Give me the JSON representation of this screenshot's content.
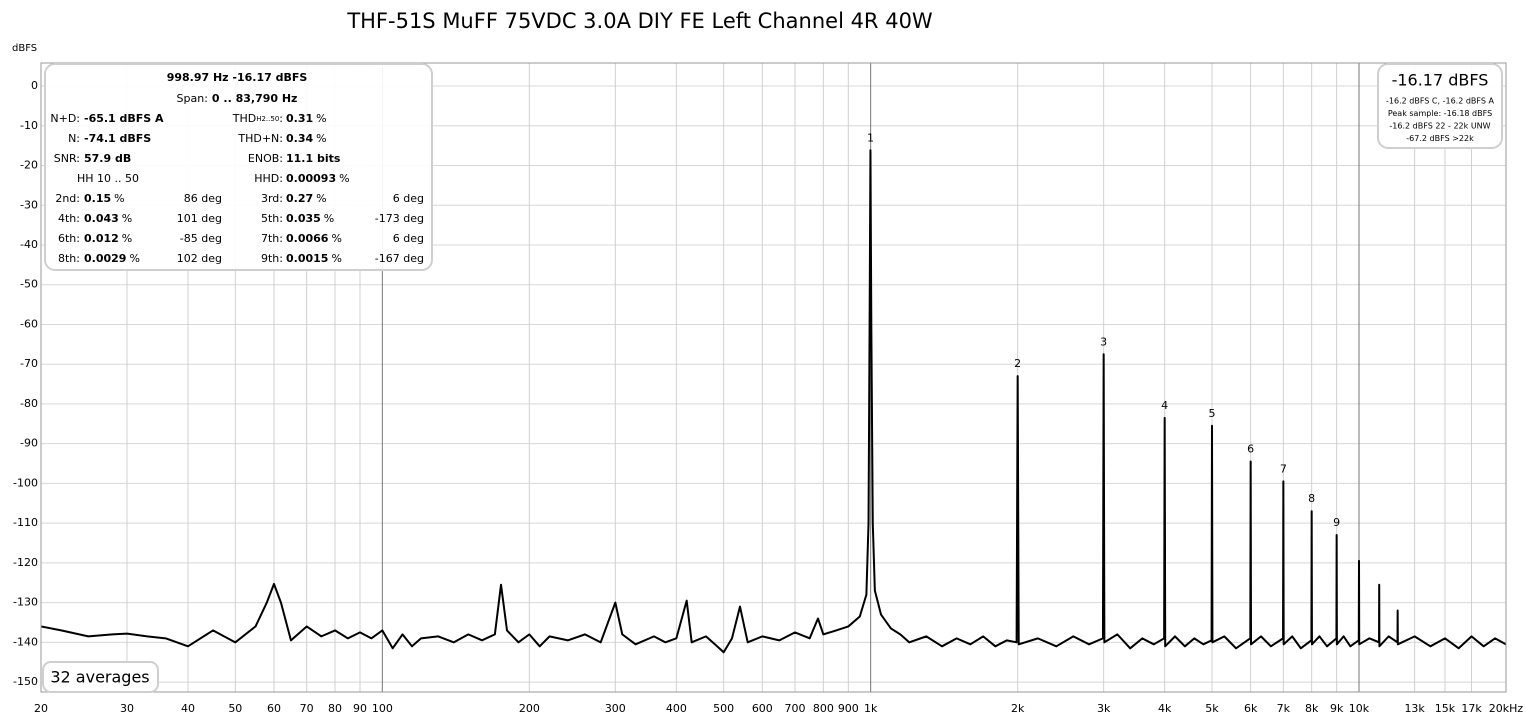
{
  "chart_data": {
    "type": "line",
    "title": "THF-51S MuFF 75VDC 3.0A DIY FE Left Channel 4R 40W",
    "y_label": "dBFS",
    "log_x": true,
    "grid": true,
    "color": "#000000",
    "xlim": [
      20,
      20000
    ],
    "ylim": [
      -152.5,
      5.8
    ],
    "yticks": [
      0,
      -10,
      -20,
      -30,
      -40,
      -50,
      -60,
      -70,
      -80,
      -90,
      -100,
      -110,
      -120,
      -130,
      -140,
      -150
    ],
    "xticks": [
      20,
      30,
      40,
      50,
      60,
      70,
      80,
      90,
      100,
      200,
      300,
      400,
      500,
      600,
      700,
      800,
      900,
      {
        "value": 1000,
        "label": "1k"
      },
      {
        "value": 2000,
        "label": "2k"
      },
      {
        "value": 3000,
        "label": "3k"
      },
      {
        "value": 4000,
        "label": "4k"
      },
      {
        "value": 5000,
        "label": "5k"
      },
      {
        "value": 6000,
        "label": "6k"
      },
      {
        "value": 7000,
        "label": "7k"
      },
      {
        "value": 8000,
        "label": "8k"
      },
      {
        "value": 9000,
        "label": "9k"
      },
      {
        "value": 10000,
        "label": "10k"
      },
      {
        "value": 13000,
        "label": "13k"
      },
      {
        "value": 15000,
        "label": "15k"
      },
      {
        "value": 17000,
        "label": "17k"
      },
      {
        "value": 20000,
        "label": "20kHz"
      }
    ],
    "x": [
      20,
      22,
      25,
      28,
      30,
      33,
      36,
      40,
      45,
      50,
      55,
      58,
      60,
      62,
      65,
      70,
      75,
      80,
      85,
      90,
      95,
      100,
      105,
      110,
      115,
      120,
      130,
      140,
      150,
      160,
      170,
      175,
      180,
      190,
      200,
      210,
      220,
      240,
      260,
      280,
      300,
      310,
      330,
      360,
      380,
      400,
      420,
      430,
      460,
      480,
      500,
      520,
      540,
      560,
      600,
      650,
      700,
      750,
      780,
      800,
      850,
      900,
      950,
      980,
      990,
      995,
      998.97,
      1003,
      1010,
      1020,
      1050,
      1100,
      1150,
      1200,
      1300,
      1400,
      1500,
      1600,
      1700,
      1800,
      1900,
      1990,
      2000,
      2010,
      2200,
      2400,
      2600,
      2800,
      2990,
      3000,
      3010,
      3200,
      3400,
      3600,
      3800,
      3990,
      4000,
      4010,
      4200,
      4400,
      4600,
      4800,
      4990,
      5000,
      5010,
      5300,
      5600,
      5990,
      6000,
      6010,
      6300,
      6600,
      6990,
      7000,
      7010,
      7300,
      7600,
      7990,
      8000,
      8010,
      8300,
      8600,
      8990,
      9000,
      9010,
      9300,
      9600,
      9990,
      10000,
      10010,
      10500,
      10990,
      11000,
      11010,
      11500,
      11990,
      12000,
      12010,
      13000,
      14000,
      15000,
      16000,
      17000,
      18000,
      19000,
      20000
    ],
    "values": [
      -136,
      -137,
      -138.5,
      -138,
      -137.8,
      -138.5,
      -139,
      -141,
      -137,
      -140,
      -136,
      -130,
      -125.3,
      -130,
      -139.5,
      -136,
      -138.5,
      -137,
      -139,
      -137.5,
      -139,
      -137,
      -141.5,
      -138,
      -141,
      -139,
      -138.5,
      -140,
      -138,
      -139.5,
      -138,
      -125.5,
      -137,
      -140,
      -138,
      -141,
      -138.5,
      -139.5,
      -138,
      -140,
      -130,
      -138,
      -140.5,
      -138.5,
      -140,
      -139,
      -129.5,
      -140,
      -138.5,
      -140.5,
      -142.5,
      -139,
      -131,
      -140,
      -138.5,
      -139.5,
      -137.5,
      -139,
      -134,
      -138,
      -137,
      -136,
      -133.5,
      -128,
      -110,
      -60,
      -16.17,
      -60,
      -110,
      -127,
      -133,
      -136.5,
      -138,
      -140,
      -138.5,
      -141,
      -139,
      -140.5,
      -138.5,
      -141,
      -139.5,
      -140,
      -73,
      -140.5,
      -139,
      -141,
      -138.5,
      -140.5,
      -139,
      -67.5,
      -140,
      -138,
      -141.5,
      -139,
      -140.5,
      -139,
      -83.5,
      -141,
      -138.5,
      -141,
      -139,
      -140.5,
      -139.5,
      -85.5,
      -140,
      -138.5,
      -141.5,
      -139,
      -94.5,
      -140.5,
      -138.5,
      -141,
      -139,
      -99.5,
      -140.5,
      -138.5,
      -141.5,
      -139.5,
      -107,
      -140.5,
      -138.5,
      -141,
      -139,
      -113,
      -140.5,
      -138.5,
      -141,
      -139.5,
      -119.5,
      -140.5,
      -139,
      -140,
      -125.5,
      -141,
      -138.5,
      -140,
      -132,
      -140.5,
      -138.5,
      -141,
      -139,
      -141.5,
      -138.5,
      -141,
      -139,
      -140.5
    ],
    "annotations": [
      {
        "text": "1",
        "x": 998.97,
        "y": -16.17
      },
      {
        "text": "2",
        "x": 2000,
        "y": -73
      },
      {
        "text": "3",
        "x": 3000,
        "y": -67.5
      },
      {
        "text": "4",
        "x": 4000,
        "y": -83.5
      },
      {
        "text": "5",
        "x": 5000,
        "y": -85.5
      },
      {
        "text": "6",
        "x": 6000,
        "y": -94.5
      },
      {
        "text": "7",
        "x": 7000,
        "y": -99.5
      },
      {
        "text": "8",
        "x": 8000,
        "y": -107
      },
      {
        "text": "9",
        "x": 9000,
        "y": -113
      }
    ],
    "info": {
      "header": "998.97 Hz  -16.17 dBFS",
      "span": {
        "label": "Span:",
        "value": "0 .. 83,790 Hz"
      },
      "metrics": [
        [
          {
            "label": "N+D:",
            "value": "-65.1 dBFS A"
          },
          {
            "label": "THD",
            "sub": "H2..50",
            "colon": ":",
            "value": "0.31",
            "unit": "%"
          }
        ],
        [
          {
            "label": "N:",
            "value": "-74.1 dBFS"
          },
          {
            "label": "THD+N:",
            "value": "0.34",
            "unit": "%"
          }
        ],
        [
          {
            "label": "SNR:",
            "value": "57.9 dB"
          },
          {
            "label": "ENOB:",
            "value": "11.1 bits"
          }
        ],
        [
          {
            "label": "HH 10 .. 50"
          },
          {
            "label": "HHD:",
            "value": "0.00093",
            "unit": "%"
          }
        ]
      ],
      "harmonics": [
        [
          {
            "label": "2nd:",
            "value": "0.15",
            "unit": "%",
            "phase": "86 deg"
          },
          {
            "label": "3rd:",
            "value": "0.27",
            "unit": "%",
            "phase": "6 deg"
          }
        ],
        [
          {
            "label": "4th:",
            "value": "0.043",
            "unit": "%",
            "phase": "101 deg"
          },
          {
            "label": "5th:",
            "value": "0.035",
            "unit": "%",
            "phase": "-173 deg"
          }
        ],
        [
          {
            "label": "6th:",
            "value": "0.012",
            "unit": "%",
            "phase": "-85 deg"
          },
          {
            "label": "7th:",
            "value": "0.0066",
            "unit": "%",
            "phase": "6 deg"
          }
        ],
        [
          {
            "label": "8th:",
            "value": "0.0029",
            "unit": "%",
            "phase": "102 deg"
          },
          {
            "label": "9th:",
            "value": "0.0015",
            "unit": "%",
            "phase": "-167 deg"
          }
        ]
      ]
    },
    "level_box": {
      "main": "-16.17 dBFS",
      "lines": [
        "-16.2 dBFS C, -16.2 dBFS A",
        "Peak sample: -16.18 dBFS",
        "-16.2 dBFS 22 - 22k UNW",
        "-67.2 dBFS >22k"
      ]
    },
    "averages": "32 averages"
  }
}
